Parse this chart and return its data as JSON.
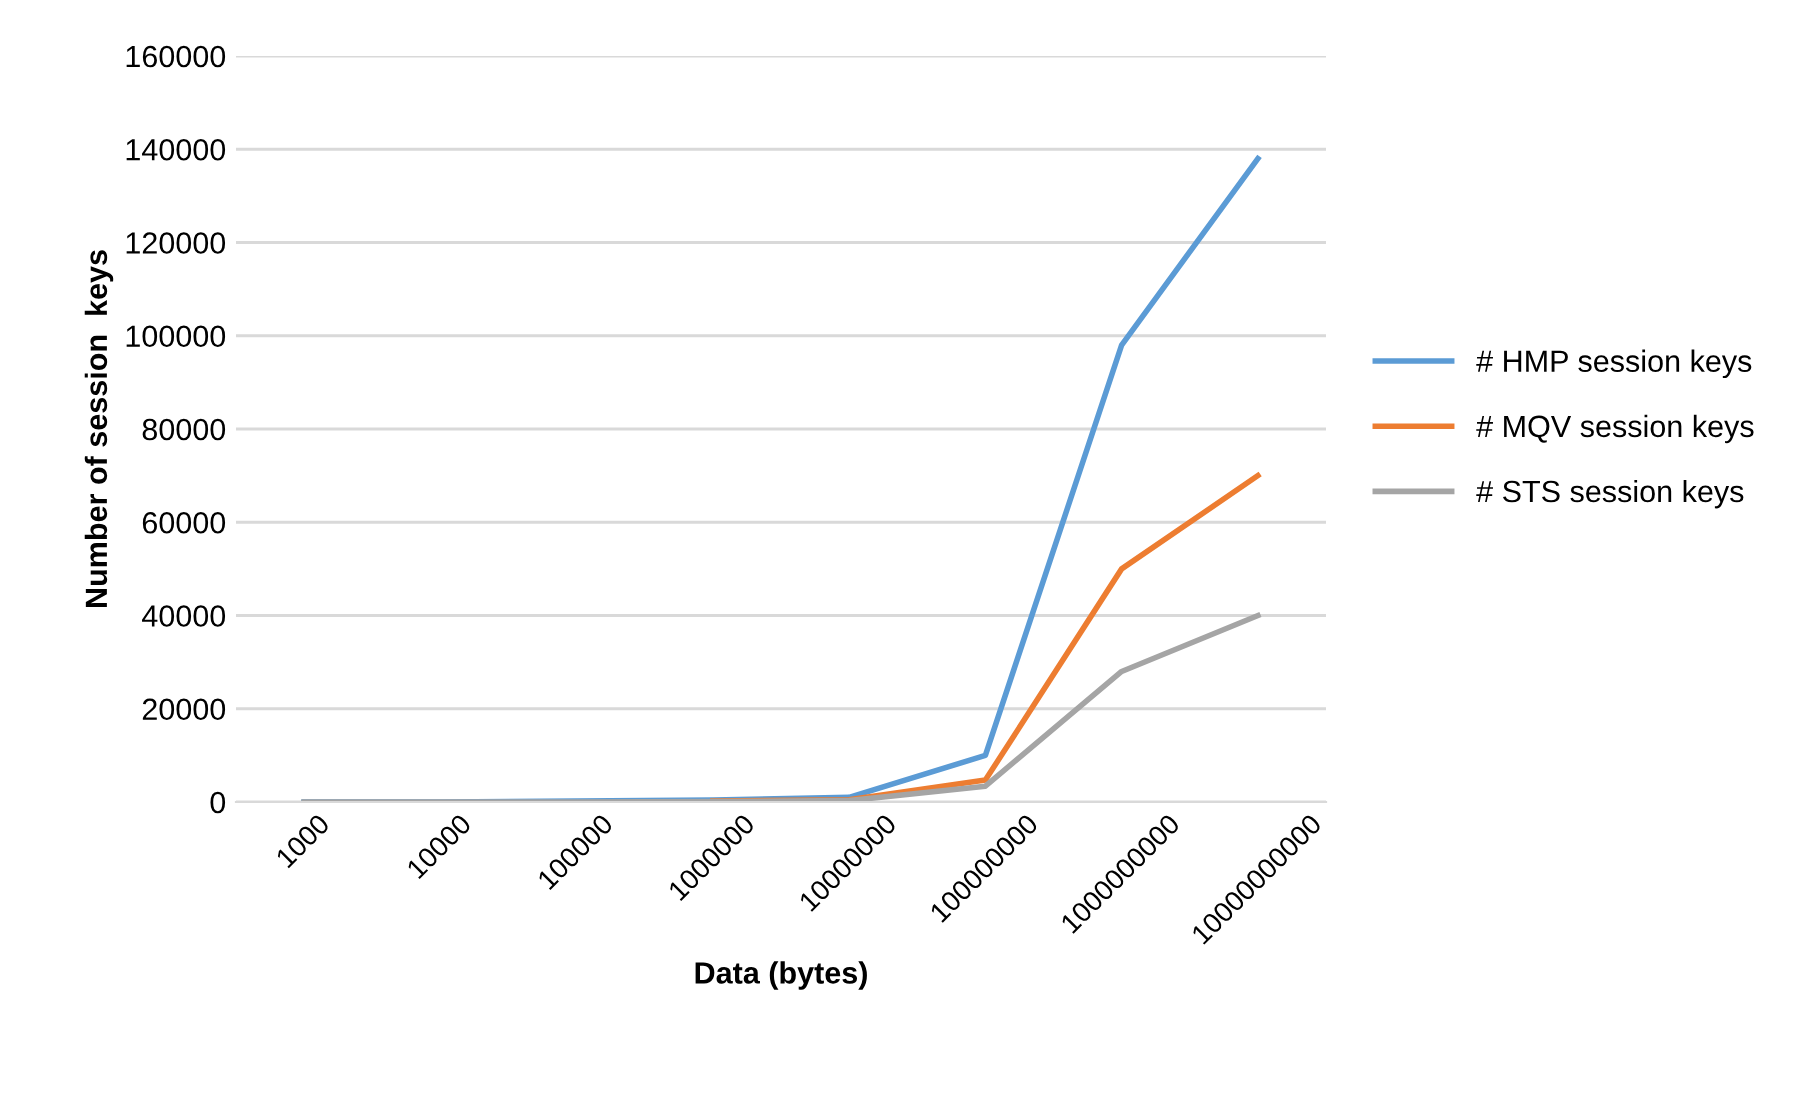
{
  "chart_data": {
    "type": "line",
    "xlabel": "Data (bytes)",
    "ylabel": "Number of session  keys",
    "categories": [
      "1000",
      "10000",
      "100000",
      "1000000",
      "10000000",
      "100000000",
      "1000000000",
      "10000000000"
    ],
    "series": [
      {
        "name": "# HMP session keys",
        "color": "#5b9bd5",
        "values": [
          0,
          0,
          200,
          400,
          1000,
          10000,
          98000,
          138000
        ]
      },
      {
        "name": "# MQV session keys",
        "color": "#ed7d31",
        "values": [
          null,
          null,
          null,
          200,
          500,
          4700,
          50000,
          70000
        ]
      },
      {
        "name": "# STS session keys",
        "color": "#a5a5a5",
        "values": [
          0,
          0,
          0,
          100,
          300,
          3400,
          28000,
          40000
        ]
      }
    ],
    "ylim": [
      0,
      160000
    ],
    "yticks": [
      0,
      20000,
      40000,
      60000,
      80000,
      100000,
      120000,
      140000,
      160000
    ],
    "grid": "y",
    "legend": "right",
    "marker": "none",
    "line_style": "solid"
  }
}
